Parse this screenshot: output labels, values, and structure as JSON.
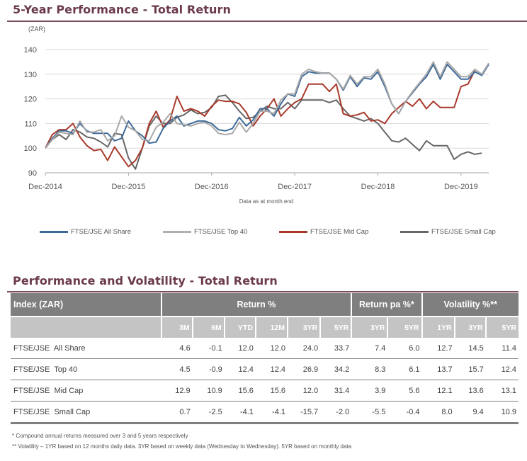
{
  "chart_section": {
    "title": "5-Year Performance - Total Return"
  },
  "chart_data": {
    "type": "line",
    "title": "5-Year Performance - Total Return",
    "ylabel": "(ZAR)",
    "xlabel": "Data as at month end",
    "ylim": [
      90,
      140
    ],
    "yticks": [
      90,
      100,
      110,
      120,
      130,
      140
    ],
    "ytick_labels": [
      "90",
      "100",
      "110",
      "120",
      "130",
      "140"
    ],
    "x_tick_labels": [
      "Dec-2014",
      "Dec-2015",
      "Dec-2016",
      "Dec-2017",
      "Dec-2018",
      "Dec-2019"
    ],
    "x_tick_month_index": [
      0,
      12,
      24,
      36,
      48,
      60
    ],
    "grid": true,
    "legend_position": "bottom",
    "series": [
      {
        "name": "FTSE/JSE All Share",
        "color": "#3e6a99",
        "values": [
          100,
          104,
          107,
          107,
          106,
          110,
          107,
          106,
          106,
          106,
          103,
          104,
          111,
          107,
          105,
          102,
          102.5,
          108,
          111,
          113,
          109,
          110,
          111,
          111,
          110,
          107.5,
          107,
          108,
          112.5,
          109,
          111.5,
          116,
          116,
          113,
          118,
          122,
          121,
          129,
          131,
          130.5,
          130.5,
          130.5,
          128,
          123.5,
          129,
          125,
          128.5,
          128,
          131,
          125,
          118,
          114,
          119,
          122.5,
          126,
          129,
          134,
          128,
          134,
          131,
          128,
          128,
          131,
          129.5,
          134
        ]
      },
      {
        "name": "FTSE/JSE Top 40",
        "color": "#a8a8a8",
        "values": [
          100,
          103.5,
          106.5,
          106,
          105.5,
          111,
          106.5,
          106.5,
          107.5,
          103,
          105,
          113,
          108.5,
          107,
          103.5,
          103,
          108.5,
          110.5,
          114,
          110,
          109.5,
          109,
          110,
          110.5,
          109,
          106,
          105.5,
          106,
          110.5,
          106.5,
          110,
          115,
          115,
          114,
          119.5,
          122,
          122,
          130,
          132,
          131,
          130.5,
          130.5,
          128,
          124,
          129.5,
          126,
          129,
          129,
          132,
          126,
          118,
          114,
          119,
          123,
          126.5,
          130,
          135,
          129,
          135,
          132,
          129,
          129,
          132,
          130,
          134.5
        ]
      },
      {
        "name": "FTSE/JSE Mid Cap",
        "color": "#a83a2c",
        "values": [
          100,
          105.5,
          107.5,
          107.5,
          110,
          104.5,
          101,
          99,
          99.5,
          95,
          100.5,
          96.5,
          92.5,
          95,
          100,
          110,
          115,
          108.5,
          111.5,
          121,
          115,
          116,
          115,
          113,
          117,
          119.5,
          119,
          119,
          118,
          114.5,
          109,
          113,
          116,
          120,
          113,
          116,
          118.5,
          120,
          126,
          126,
          126,
          123,
          126,
          114,
          113,
          113.5,
          114.5,
          111,
          111.5,
          110,
          114,
          116.5,
          119,
          117,
          120,
          116,
          119,
          116.5,
          116.5,
          116.5,
          125,
          126,
          131.5
        ]
      },
      {
        "name": "FTSE/JSE Small Cap",
        "color": "#666666",
        "values": [
          100,
          103.5,
          105.5,
          103.5,
          107.5,
          106.5,
          104.5,
          104,
          102.5,
          100.5,
          106,
          105.5,
          96,
          91.5,
          100,
          109,
          113,
          110,
          110,
          112.5,
          113.5,
          115.5,
          114,
          114.5,
          116.5,
          121,
          121.5,
          118.5,
          115,
          112,
          112.5,
          115,
          117,
          116,
          116,
          118.5,
          116,
          119.5,
          119.5,
          119.5,
          119.5,
          118.5,
          119.5,
          116,
          113,
          112,
          111,
          112,
          110,
          106.5,
          103,
          102.5,
          104,
          101.5,
          99,
          103,
          101,
          101,
          101,
          95.5,
          97.5,
          98.5,
          97.5,
          98
        ]
      }
    ]
  },
  "legend": {
    "items": [
      "FTSE/JSE All Share",
      "FTSE/JSE Top 40",
      "FTSE/JSE Mid Cap",
      "FTSE/JSE Small Cap"
    ]
  },
  "table_section": {
    "title": "Performance and Volatility - Total Return",
    "header_groups": {
      "index": "Index (ZAR)",
      "return": "Return %",
      "return_pa": "Return pa %*",
      "volatility": "Volatility %**"
    },
    "sub_headers": [
      "3M",
      "6M",
      "YTD",
      "12M",
      "3YR",
      "5YR",
      "3YR",
      "5YR",
      "1YR",
      "3YR",
      "5YR"
    ],
    "rows": [
      {
        "name": "FTSE/JSE  All Share",
        "values": [
          "4.6",
          "-0.1",
          "12.0",
          "12.0",
          "24.0",
          "33.7",
          "7.4",
          "6.0",
          "12.7",
          "14.5",
          "11.4"
        ]
      },
      {
        "name": "FTSE/JSE  Top 40",
        "values": [
          "4.5",
          "-0.9",
          "12.4",
          "12.4",
          "26.9",
          "34.2",
          "8.3",
          "6.1",
          "13.7",
          "15.7",
          "12.4"
        ]
      },
      {
        "name": "FTSE/JSE  Mid Cap",
        "values": [
          "12.9",
          "10.9",
          "15.6",
          "15.6",
          "12.0",
          "31.4",
          "3.9",
          "5.6",
          "12.1",
          "13.6",
          "13.1"
        ]
      },
      {
        "name": "FTSE/JSE  Small Cap",
        "values": [
          "0.7",
          "-2.5",
          "-4.1",
          "-4.1",
          "-15.7",
          "-2.0",
          "-5.5",
          "-0.4",
          "8.0",
          "9.4",
          "10.9"
        ]
      }
    ]
  },
  "footnotes": [
    "* Compound  annual  returns  measured  over  3 and  5 years  respectively",
    "** Volatility  – 1YR based on 12 months daily  data. 3YR based  on weekly  data (Wednesday  to Wednesday).  5YR based on monthly  data"
  ]
}
